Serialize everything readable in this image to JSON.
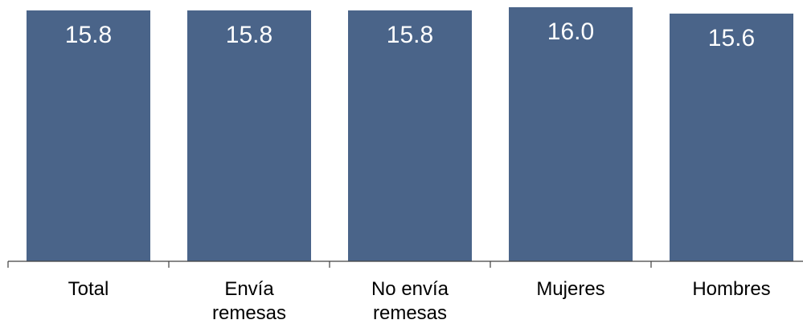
{
  "chart_data": {
    "type": "bar",
    "categories": [
      [
        "Total"
      ],
      [
        "Envía",
        "remesas"
      ],
      [
        "No envía",
        "remesas"
      ],
      [
        "Mujeres"
      ],
      [
        "Hombres"
      ]
    ],
    "values": [
      15.8,
      15.8,
      15.8,
      16.0,
      15.6
    ],
    "data_labels": [
      "15.8",
      "15.8",
      "15.8",
      "16.0",
      "15.6"
    ],
    "ylim": [
      0,
      16.0
    ],
    "grid": false,
    "bar_color": "#4a6489",
    "label_color": "#ffffff",
    "axis_color": "#404040"
  }
}
